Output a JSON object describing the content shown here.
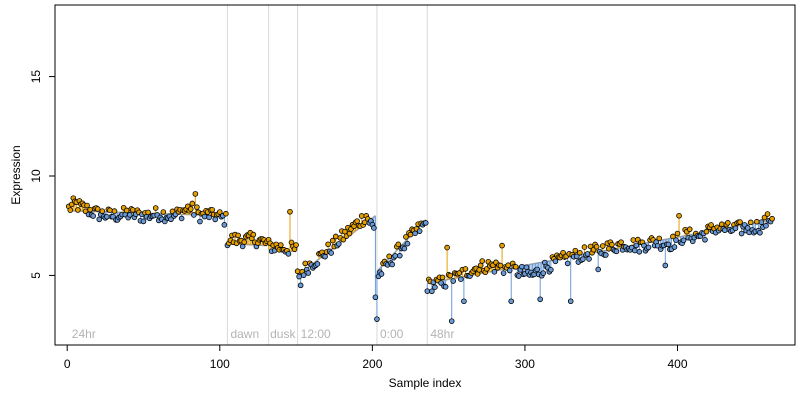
{
  "chart_data": {
    "type": "scatter",
    "title": "",
    "xlabel": "Sample index",
    "ylabel": "Expression",
    "xlim": [
      -8,
      477
    ],
    "ylim": [
      1.5,
      18.6
    ],
    "x_ticks": [
      0,
      100,
      200,
      300,
      400
    ],
    "y_ticks": [
      5,
      10,
      15
    ],
    "grid": false,
    "legend": "none",
    "colors": {
      "above": "#e69f00",
      "below": "#6a9bd8",
      "trend": "#a0a0a0",
      "marker_stroke": "#000000",
      "divider": "#d9d9d9",
      "annotation": "#b3b3b3"
    },
    "annotations": [
      {
        "x": 3,
        "text": "24hr"
      },
      {
        "x": 107,
        "text": "dawn"
      },
      {
        "x": 133,
        "text": "dusk"
      },
      {
        "x": 153,
        "text": "12:00"
      },
      {
        "x": 205,
        "text": "0:00"
      },
      {
        "x": 238,
        "text": "48hr"
      }
    ],
    "dividers": [
      105,
      132,
      151,
      203,
      236
    ],
    "segments": [
      {
        "x0": 1,
        "x1": 104,
        "y0": 8.25,
        "y1": 8.0
      },
      {
        "x0": 105,
        "x1": 131,
        "y0": 6.6,
        "y1": 6.5
      },
      {
        "x0": 132,
        "x1": 150,
        "y0": 6.3,
        "y1": 6.2
      },
      {
        "x0": 151,
        "x1": 202,
        "y0": 5.0,
        "y1": 8.0
      },
      {
        "x0": 203,
        "x1": 235,
        "y0": 5.2,
        "y1": 7.8
      },
      {
        "x0": 236,
        "x1": 462,
        "y0": 4.6,
        "y1": 7.8
      }
    ],
    "anchors": [
      [
        0,
        8.3
      ],
      [
        5,
        8.6
      ],
      [
        10,
        8.4
      ],
      [
        20,
        8.1
      ],
      [
        30,
        8.0
      ],
      [
        40,
        8.1
      ],
      [
        50,
        8.0
      ],
      [
        60,
        8.1
      ],
      [
        70,
        8.0
      ],
      [
        80,
        8.4
      ],
      [
        88,
        8.0
      ],
      [
        95,
        8.1
      ],
      [
        104,
        7.8
      ],
      [
        105,
        6.8
      ],
      [
        115,
        6.8
      ],
      [
        125,
        6.8
      ],
      [
        131,
        6.6
      ],
      [
        132,
        6.5
      ],
      [
        140,
        6.4
      ],
      [
        150,
        6.3
      ],
      [
        151,
        5.0
      ],
      [
        160,
        5.6
      ],
      [
        170,
        6.2
      ],
      [
        180,
        6.9
      ],
      [
        190,
        7.6
      ],
      [
        196,
        8.0
      ],
      [
        202,
        7.2
      ],
      [
        203,
        4.9
      ],
      [
        210,
        5.6
      ],
      [
        220,
        6.5
      ],
      [
        230,
        7.3
      ],
      [
        235,
        7.6
      ],
      [
        236,
        4.5
      ],
      [
        245,
        4.6
      ],
      [
        255,
        4.9
      ],
      [
        265,
        5.3
      ],
      [
        275,
        5.5
      ],
      [
        285,
        5.4
      ],
      [
        295,
        5.2
      ],
      [
        305,
        5.0
      ],
      [
        315,
        5.5
      ],
      [
        325,
        5.8
      ],
      [
        335,
        6.0
      ],
      [
        345,
        6.2
      ],
      [
        355,
        6.4
      ],
      [
        365,
        6.6
      ],
      [
        375,
        6.5
      ],
      [
        385,
        6.7
      ],
      [
        395,
        6.6
      ],
      [
        405,
        7.0
      ],
      [
        415,
        7.0
      ],
      [
        425,
        7.4
      ],
      [
        435,
        7.3
      ],
      [
        445,
        7.4
      ],
      [
        455,
        7.5
      ],
      [
        461,
        7.9
      ]
    ],
    "outliers": [
      [
        84,
        9.1
      ],
      [
        95,
        8.3
      ],
      [
        146,
        8.2
      ],
      [
        153,
        4.5
      ],
      [
        202,
        3.9
      ],
      [
        203,
        2.8
      ],
      [
        249,
        6.4
      ],
      [
        252,
        2.7
      ],
      [
        260,
        3.7
      ],
      [
        285,
        6.5
      ],
      [
        291,
        3.7
      ],
      [
        310,
        3.8
      ],
      [
        330,
        3.7
      ],
      [
        348,
        5.3
      ],
      [
        392,
        5.5
      ],
      [
        401,
        8.0
      ]
    ],
    "point_count": 462,
    "noise": 0.35
  }
}
